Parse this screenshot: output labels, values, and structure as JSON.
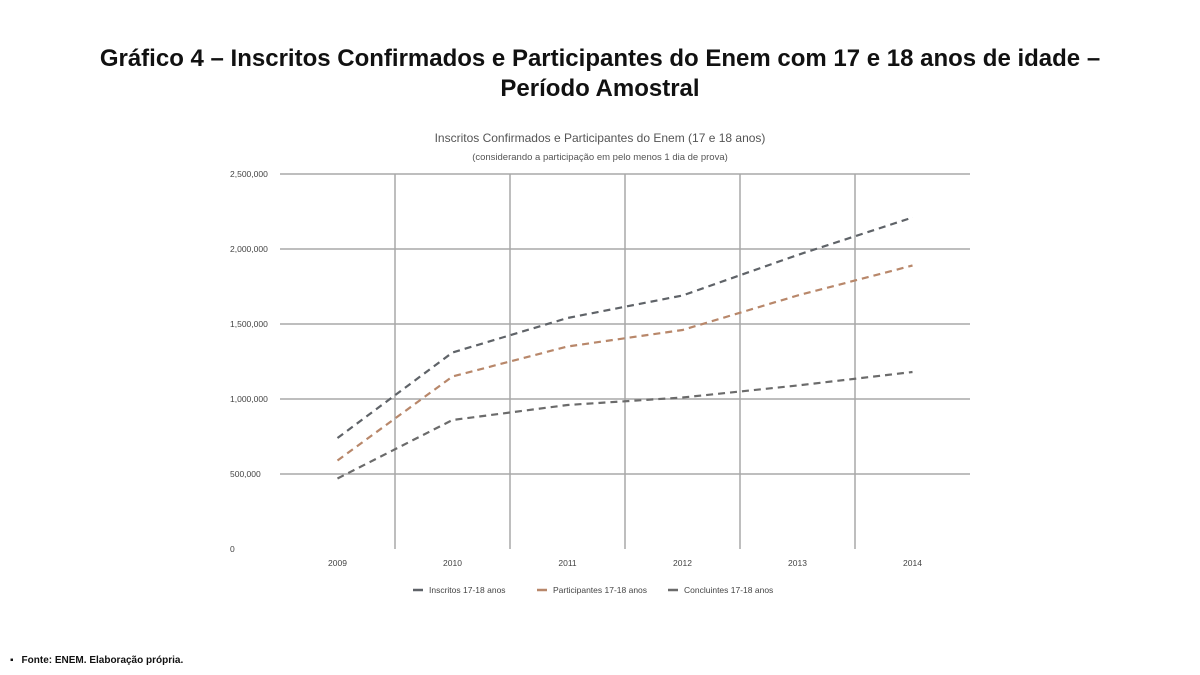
{
  "slide_title": "Gráfico 4 – Inscritos Confirmados e Participantes do Enem com 17 e 18 anos de idade – Período Amostral",
  "source_note": "Fonte: ENEM. Elaboração própria.",
  "chart_data": {
    "type": "line",
    "title": "Inscritos Confirmados e Participantes do Enem (17 e 18 anos)",
    "subtitle": "(considerando a participação em pelo menos 1 dia de prova)",
    "categories": [
      "2009",
      "2010",
      "2011",
      "2012",
      "2013",
      "2014"
    ],
    "ylim": [
      0,
      2500000
    ],
    "yticks": [
      0,
      500000,
      1000000,
      1500000,
      2000000,
      2500000
    ],
    "ytick_labels": [
      "0",
      "500,000",
      "1,000,000",
      "1,500,000",
      "2,000,000",
      "2,500,000"
    ],
    "grid": true,
    "legend_position": "bottom",
    "line_style": "dashed",
    "series": [
      {
        "name": "Inscritos 17-18 anos",
        "color": "#5f6368",
        "values": [
          740000,
          1310000,
          1540000,
          1690000,
          1960000,
          2210000
        ]
      },
      {
        "name": "Participantes 17-18 anos",
        "color": "#b8876a",
        "values": [
          590000,
          1150000,
          1350000,
          1460000,
          1690000,
          1890000
        ]
      },
      {
        "name": "Concluintes 17-18 anos",
        "color": "#6b6b6b",
        "values": [
          470000,
          860000,
          960000,
          1010000,
          1090000,
          1180000
        ]
      }
    ]
  }
}
